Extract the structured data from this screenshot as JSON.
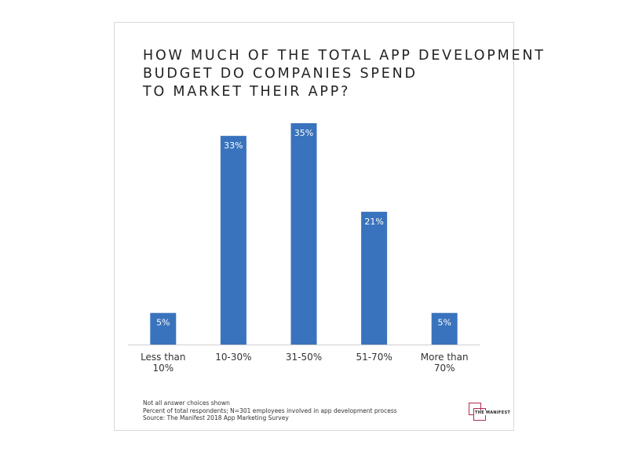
{
  "title_lines": [
    "HOW MUCH OF THE TOTAL APP DEVELOPMENT",
    "BUDGET DO COMPANIES SPEND",
    "TO MARKET THEIR APP?"
  ],
  "notes": [
    "Not all answer choices shown",
    "Percent of total respondents; N=301 employees involved in app development process",
    "Source: The Manifest 2018 App Marketing Survey"
  ],
  "logo": {
    "text": "THE MANIFEST",
    "color": "#b22b4c"
  },
  "chart_data": {
    "type": "bar",
    "title": "HOW MUCH OF THE TOTAL APP DEVELOPMENT BUDGET DO COMPANIES SPEND TO MARKET THEIR APP?",
    "categories": [
      [
        "Less than",
        "10%"
      ],
      [
        "10-30%"
      ],
      [
        "31-50%"
      ],
      [
        "51-70%"
      ],
      [
        "More than",
        "70%"
      ]
    ],
    "values": [
      5,
      33,
      35,
      21,
      5
    ],
    "value_labels": [
      "5%",
      "33%",
      "35%",
      "21%",
      "5%"
    ],
    "bar_color": "#3a73bd",
    "xlabel": "",
    "ylabel": "",
    "ylim": [
      0,
      35
    ],
    "grid": false,
    "legend": "none"
  }
}
